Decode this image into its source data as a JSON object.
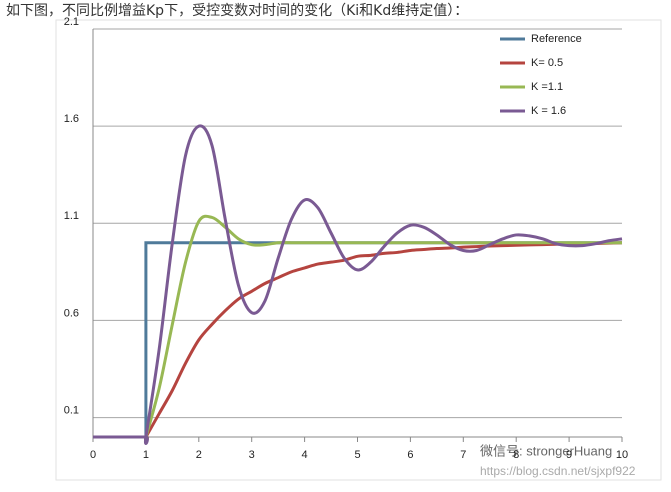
{
  "caption": "如下图，不同比例增益Kp下，受控变数对时间的变化（Ki和Kd维持定值）：",
  "watermark": {
    "account": "微信号: strongerHuang",
    "url": "https://blog.csdn.net/sjxpf922"
  },
  "chart_data": {
    "type": "line",
    "x": [
      0,
      0.5,
      1,
      1,
      1.25,
      1.5,
      1.75,
      2,
      2.25,
      2.5,
      2.75,
      3,
      3.25,
      3.5,
      3.75,
      4,
      4.25,
      4.5,
      4.75,
      5,
      5.25,
      5.5,
      5.75,
      6,
      6.25,
      6.5,
      6.75,
      7,
      7.25,
      7.5,
      7.75,
      8,
      8.25,
      8.5,
      8.75,
      9,
      9.25,
      9.5,
      9.75,
      10
    ],
    "series": [
      {
        "name": "Reference",
        "color": "#4f7a9a",
        "values": [
          0,
          0,
          0,
          1,
          1,
          1,
          1,
          1,
          1,
          1,
          1,
          1,
          1,
          1,
          1,
          1,
          1,
          1,
          1,
          1,
          1,
          1,
          1,
          1,
          1,
          1,
          1,
          1,
          1,
          1,
          1,
          1,
          1,
          1,
          1,
          1,
          1,
          1,
          1,
          1
        ]
      },
      {
        "name": "K= 0.5",
        "color": "#b5443f",
        "values": [
          0,
          0,
          0,
          0,
          0.12,
          0.24,
          0.38,
          0.5,
          0.58,
          0.65,
          0.71,
          0.75,
          0.79,
          0.82,
          0.85,
          0.87,
          0.89,
          0.9,
          0.91,
          0.93,
          0.935,
          0.945,
          0.95,
          0.96,
          0.965,
          0.97,
          0.973,
          0.977,
          0.98,
          0.983,
          0.985,
          0.987,
          0.989,
          0.99,
          0.992,
          0.994,
          0.995,
          0.996,
          0.998,
          1.0
        ]
      },
      {
        "name": "K =1.1",
        "color": "#98b854",
        "values": [
          0,
          0,
          0,
          0,
          0.25,
          0.58,
          0.9,
          1.11,
          1.13,
          1.08,
          1.02,
          0.99,
          0.99,
          1.0,
          1.0,
          1.0,
          1.0,
          1.0,
          1.0,
          1.0,
          1.0,
          1.0,
          1.0,
          1.0,
          1.0,
          1.0,
          1.0,
          1.0,
          1.0,
          1.0,
          1.0,
          1.0,
          1.0,
          1.0,
          1.0,
          1.0,
          1.0,
          1.0,
          1.0,
          1.0
        ]
      },
      {
        "name": "K = 1.6",
        "color": "#7a5a93",
        "values": [
          0,
          0,
          0,
          0,
          0.45,
          1.0,
          1.45,
          1.6,
          1.5,
          1.12,
          0.78,
          0.64,
          0.7,
          0.92,
          1.12,
          1.22,
          1.18,
          1.05,
          0.92,
          0.86,
          0.9,
          0.98,
          1.05,
          1.09,
          1.08,
          1.04,
          0.99,
          0.96,
          0.96,
          0.99,
          1.02,
          1.04,
          1.035,
          1.02,
          0.995,
          0.985,
          0.985,
          0.995,
          1.01,
          1.02
        ]
      }
    ],
    "xlim": [
      0,
      10
    ],
    "xticks": [
      0,
      1,
      2,
      3,
      4,
      5,
      6,
      7,
      8,
      9,
      10
    ],
    "ylim": [
      0,
      2.1
    ],
    "yticks": [
      0.1,
      0.6,
      1.1,
      1.6,
      2.1
    ],
    "grid": true,
    "legend": "top-right"
  }
}
